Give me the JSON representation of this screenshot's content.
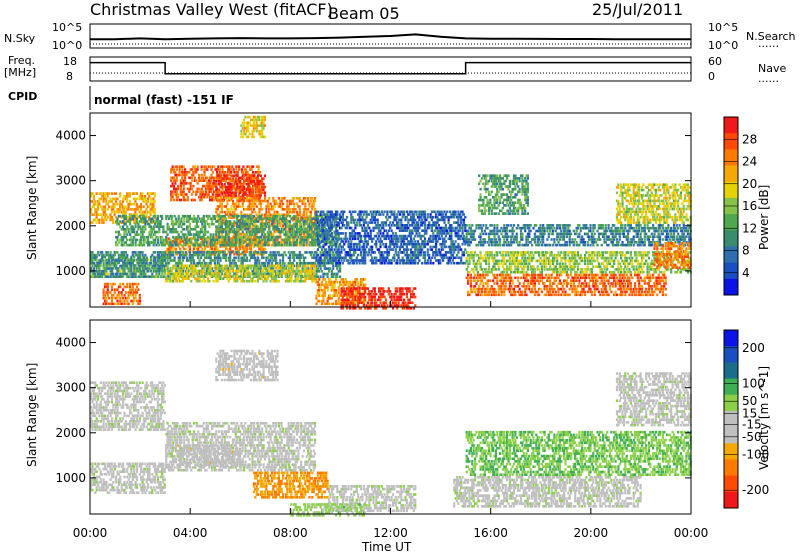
{
  "header": {
    "title": "Christmas Valley West (fitACF)",
    "beam": "Beam 05",
    "date": "25/Jul/2011"
  },
  "labels": {
    "nsky": "N.Sky",
    "nsearch": "N.Search",
    "freq_top": "Freq.",
    "freq_unit": "[MHz]",
    "nave": "Nave",
    "cpid": "CPID",
    "cpid_value": "normal (fast) -151 IF",
    "dots": "......",
    "nsky_ticks": [
      "10^5",
      "10^0"
    ],
    "nsearch_ticks": [
      "10^5",
      "10^0"
    ],
    "freq_ticks": [
      "18",
      "8"
    ],
    "nave_ticks": [
      "60",
      "0"
    ]
  },
  "chart_data": [
    {
      "type": "heatmap",
      "panel": "power",
      "xlabel": "Time UT",
      "ylabel": "Slant Range [km]",
      "x_ticks": [
        "00:00",
        "04:00",
        "08:00",
        "12:00",
        "16:00",
        "20:00",
        "00:00"
      ],
      "y_ticks": [
        1000,
        2000,
        3000,
        4000
      ],
      "ylim": [
        200,
        4500
      ],
      "colorbar": {
        "label": "Power [dB]",
        "ticks": [
          4,
          8,
          12,
          16,
          20,
          24,
          28
        ],
        "range": [
          0,
          32
        ],
        "colors": [
          "#0a14e6",
          "#1a4fc0",
          "#2f6fb0",
          "#3a8c6e",
          "#4ea84e",
          "#86c24a",
          "#e6d200",
          "#f5a800",
          "#ff7a00",
          "#ff4a00",
          "#f01818"
        ]
      },
      "bands": [
        {
          "t0": 0.0,
          "t1": 2.6,
          "r0": 2100,
          "r1": 2800,
          "p": 22
        },
        {
          "t0": 3.2,
          "t1": 6.8,
          "r0": 2600,
          "r1": 3400,
          "p": 27
        },
        {
          "t0": 5.0,
          "t1": 7.0,
          "r0": 2700,
          "r1": 3200,
          "p": 29
        },
        {
          "t0": 3.0,
          "t1": 7.0,
          "r0": 1400,
          "r1": 1800,
          "p": 24
        },
        {
          "t0": 5.0,
          "t1": 9.0,
          "r0": 1600,
          "r1": 2700,
          "p": 24
        },
        {
          "t0": 1.0,
          "t1": 10.0,
          "r0": 1600,
          "r1": 2300,
          "p": 12
        },
        {
          "t0": 0.0,
          "t1": 3.0,
          "r0": 900,
          "r1": 1400,
          "p": 14
        },
        {
          "t0": 0.0,
          "t1": 10.0,
          "r0": 900,
          "r1": 1500,
          "p": 10
        },
        {
          "t0": 3.0,
          "t1": 9.0,
          "r0": 800,
          "r1": 1200,
          "p": 18
        },
        {
          "t0": 0.5,
          "t1": 2.0,
          "r0": 300,
          "r1": 800,
          "p": 26
        },
        {
          "t0": 9.0,
          "t1": 11.0,
          "r0": 300,
          "r1": 900,
          "p": 23
        },
        {
          "t0": 10.0,
          "t1": 13.0,
          "r0": 200,
          "r1": 700,
          "p": 30
        },
        {
          "t0": 15.0,
          "t1": 23.0,
          "r0": 500,
          "r1": 1000,
          "p": 26
        },
        {
          "t0": 15.0,
          "t1": 24.0,
          "r0": 1000,
          "r1": 1500,
          "p": 16
        },
        {
          "t0": 15.0,
          "t1": 24.0,
          "r0": 1600,
          "r1": 2100,
          "p": 9
        },
        {
          "t0": 21.0,
          "t1": 24.0,
          "r0": 2100,
          "r1": 3000,
          "p": 18
        },
        {
          "t0": 22.5,
          "t1": 24.0,
          "r0": 1100,
          "r1": 1700,
          "p": 25
        },
        {
          "t0": 9.0,
          "t1": 15.0,
          "r0": 1200,
          "r1": 2400,
          "p": 6
        },
        {
          "t0": 15.5,
          "t1": 17.5,
          "r0": 2300,
          "r1": 3200,
          "p": 12
        },
        {
          "t0": 6.0,
          "t1": 7.0,
          "r0": 4000,
          "r1": 4500,
          "p": 20
        }
      ]
    },
    {
      "type": "heatmap",
      "panel": "velocity",
      "xlabel": "Time UT",
      "ylabel": "Slant Range [km]",
      "x_ticks": [
        "00:00",
        "04:00",
        "08:00",
        "12:00",
        "16:00",
        "20:00",
        "00:00"
      ],
      "y_ticks": [
        1000,
        2000,
        3000,
        4000
      ],
      "ylim": [
        200,
        4500
      ],
      "colorbar": {
        "label": "Velocity [m s^-1]",
        "ticks": [
          200,
          100,
          50,
          15,
          -15,
          -50,
          -100,
          -200
        ],
        "range": [
          -250,
          250
        ],
        "colors": [
          "#f01818",
          "#ff4a00",
          "#ff7a00",
          "#f5a800",
          "#bfbfbf",
          "#bfbfbf",
          "#8cd04a",
          "#3fae54",
          "#1a6e8c",
          "#1a4fc0",
          "#0a14e6"
        ]
      },
      "bands": [
        {
          "t0": 0.0,
          "t1": 3.0,
          "r0": 2100,
          "r1": 3200,
          "v": 0
        },
        {
          "t0": 3.0,
          "t1": 9.0,
          "r0": 1200,
          "r1": 2300,
          "v": 0
        },
        {
          "t0": 0.0,
          "t1": 3.0,
          "r0": 700,
          "r1": 1400,
          "v": 0
        },
        {
          "t0": 9.5,
          "t1": 13.0,
          "r0": 300,
          "r1": 900,
          "v": 0
        },
        {
          "t0": 14.5,
          "t1": 22.0,
          "r0": 400,
          "r1": 1100,
          "v": 0
        },
        {
          "t0": 21.0,
          "t1": 24.0,
          "r0": 2200,
          "r1": 3400,
          "v": 0
        },
        {
          "t0": 6.5,
          "t1": 9.5,
          "r0": 600,
          "r1": 1200,
          "v": -110
        },
        {
          "t0": 5.0,
          "t1": 7.5,
          "r0": 3200,
          "r1": 3900,
          "v": -40
        },
        {
          "t0": 3.5,
          "t1": 6.0,
          "r0": 1300,
          "r1": 1800,
          "v": -40
        },
        {
          "t0": 8.0,
          "t1": 11.0,
          "r0": 200,
          "r1": 500,
          "v": 40
        },
        {
          "t0": 15.0,
          "t1": 24.0,
          "r0": 1100,
          "r1": 2100,
          "v": 60
        }
      ]
    }
  ],
  "top_series": {
    "nsky": [
      0.55,
      0.55,
      0.6,
      0.55,
      0.58,
      0.6,
      0.62,
      0.6,
      0.6,
      0.62,
      0.65,
      0.7,
      0.75,
      0.85,
      0.7,
      0.6,
      0.58,
      0.58,
      0.57,
      0.56,
      0.56,
      0.55,
      0.55,
      0.55,
      0.55
    ],
    "freq_mhz": [
      17,
      17,
      17,
      10,
      10,
      10,
      10,
      10,
      10,
      10,
      10,
      10,
      10,
      10,
      10,
      17,
      17,
      17,
      17,
      17,
      17,
      17,
      17,
      17,
      17
    ],
    "freq_steps_ut": [
      0,
      3,
      15,
      24
    ]
  }
}
